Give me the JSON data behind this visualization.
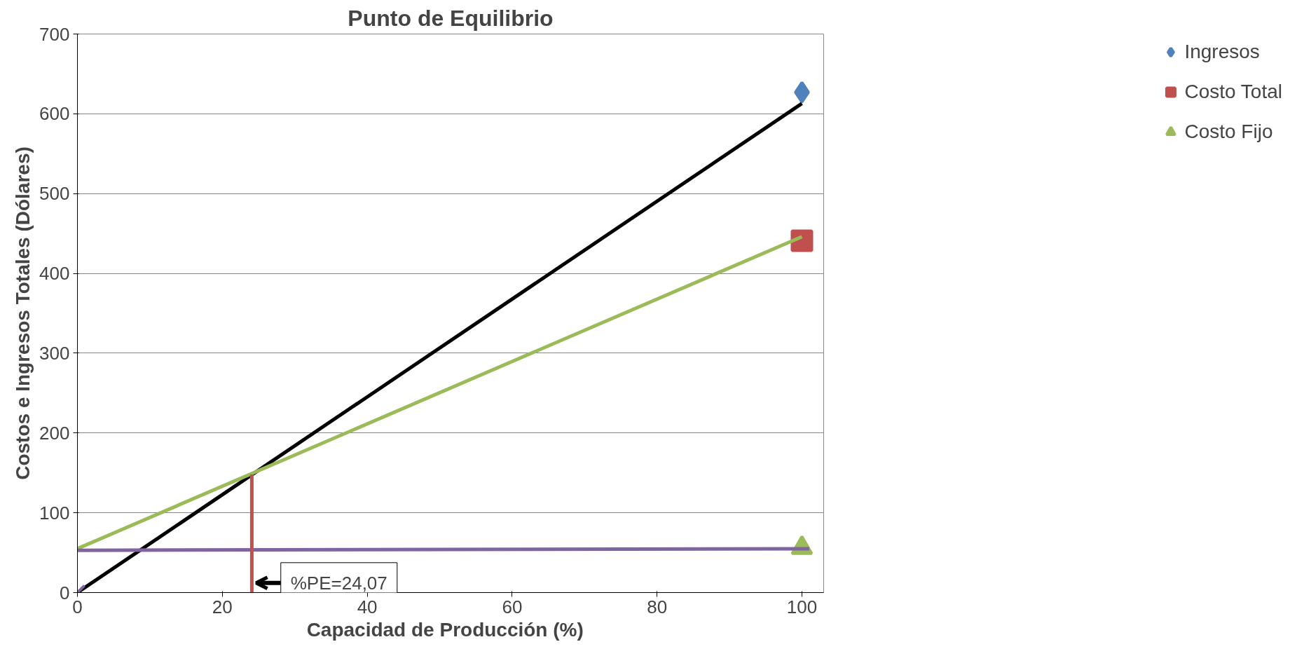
{
  "chart_data": {
    "type": "scatter",
    "title": "Punto de Equilibrio",
    "xlabel": "Capacidad  de Producción  (%)",
    "ylabel": "Costos e Ingresos Totales (Dólares)",
    "series": [
      {
        "name": "Ingresos",
        "color": "#4f81bd",
        "marker": "diamond",
        "x": [
          100
        ],
        "values": [
          627
        ]
      },
      {
        "name": "Costo Total",
        "color": "#c0504d",
        "marker": "square",
        "x": [
          100
        ],
        "values": [
          441
        ]
      },
      {
        "name": "Costo Fijo",
        "color": "#9bbb59",
        "marker": "triangle",
        "x": [
          100
        ],
        "values": [
          56
        ]
      },
      {
        "type": "line",
        "color": "#000000",
        "x": [
          0,
          100
        ],
        "values": [
          0,
          613
        ]
      },
      {
        "type": "line",
        "color": "#9bbb59",
        "x": [
          0,
          100
        ],
        "values": [
          55,
          446
        ]
      },
      {
        "type": "line",
        "color": "#8064a2",
        "x": [
          0,
          101
        ],
        "values": [
          53,
          55
        ]
      },
      {
        "type": "line",
        "color": "#c0504d",
        "x": [
          24.07,
          24.07
        ],
        "values": [
          0,
          148
        ]
      },
      {
        "color": "#8064a2",
        "marker": "cross",
        "x": [
          0
        ],
        "values": [
          0
        ]
      }
    ],
    "annotations": [
      {
        "text": "%PE=24,07",
        "x": 24.07,
        "y": 0
      }
    ],
    "xlim": [
      0,
      103
    ],
    "ylim": [
      0,
      700
    ],
    "xticks": [
      0,
      20,
      40,
      60,
      80,
      100
    ],
    "yticks": [
      0,
      100,
      200,
      300,
      400,
      500,
      600,
      700
    ],
    "grid": "y",
    "legend": "right"
  }
}
